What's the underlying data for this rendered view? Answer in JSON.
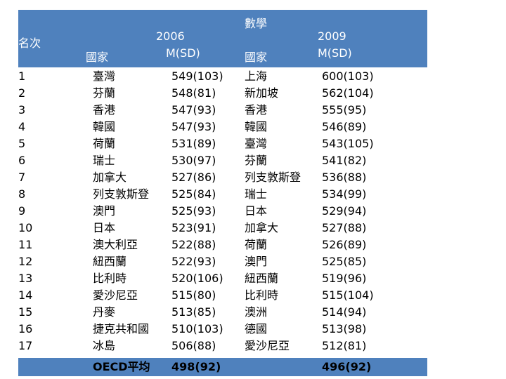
{
  "header": {
    "subject": "數學",
    "rank_label": "名次",
    "year_2006": "2006",
    "msd_2006": "M(SD)",
    "country_2006": "國家",
    "country_2009": "國家",
    "year_2009": "2009",
    "msd_2009": "M(SD)"
  },
  "rows": [
    {
      "rank": "1",
      "c2006": "臺灣",
      "v2006": "549(103)",
      "c2009": "上海",
      "v2009": "600(103)"
    },
    {
      "rank": "2",
      "c2006": "芬蘭",
      "v2006": "548(81)",
      "c2009": "新加坡",
      "v2009": "562(104)"
    },
    {
      "rank": "3",
      "c2006": "香港",
      "v2006": "547(93)",
      "c2009": "香港",
      "v2009": "555(95)"
    },
    {
      "rank": "4",
      "c2006": "韓國",
      "v2006": "547(93)",
      "c2009": "韓國",
      "v2009": "546(89)"
    },
    {
      "rank": "5",
      "c2006": "荷蘭",
      "v2006": "531(89)",
      "c2009": "臺灣",
      "v2009": "543(105)"
    },
    {
      "rank": "6",
      "c2006": "瑞士",
      "v2006": "530(97)",
      "c2009": "芬蘭",
      "v2009": "541(82)"
    },
    {
      "rank": "7",
      "c2006": "加拿大",
      "v2006": "527(86)",
      "c2009": "列支敦斯登",
      "v2009": "536(88)"
    },
    {
      "rank": "8",
      "c2006": "列支敦斯登",
      "v2006": "525(84)",
      "c2009": "瑞士",
      "v2009": "534(99)"
    },
    {
      "rank": "9",
      "c2006": "澳門",
      "v2006": "525(93)",
      "c2009": "日本",
      "v2009": "529(94)"
    },
    {
      "rank": "10",
      "c2006": "日本",
      "v2006": "523(91)",
      "c2009": "加拿大",
      "v2009": "527(88)"
    },
    {
      "rank": "11",
      "c2006": "澳大利亞",
      "v2006": "522(88)",
      "c2009": "荷蘭",
      "v2009": "526(89)"
    },
    {
      "rank": "12",
      "c2006": "紐西蘭",
      "v2006": "522(93)",
      "c2009": "澳門",
      "v2009": "525(85)"
    },
    {
      "rank": "13",
      "c2006": "比利時",
      "v2006": "520(106)",
      "c2009": "紐西蘭",
      "v2009": "519(96)"
    },
    {
      "rank": "14",
      "c2006": "愛沙尼亞",
      "v2006": "515(80)",
      "c2009": "比利時",
      "v2009": "515(104)"
    },
    {
      "rank": "15",
      "c2006": "丹麥",
      "v2006": "513(85)",
      "c2009": "澳洲",
      "v2009": "514(94)"
    },
    {
      "rank": "16",
      "c2006": "捷克共和國",
      "v2006": "510(103)",
      "c2009": "德國",
      "v2009": "513(98)"
    },
    {
      "rank": "17",
      "c2006": "冰島",
      "v2006": "506(88)",
      "c2009": "愛沙尼亞",
      "v2009": "512(81)"
    }
  ],
  "footer": {
    "label": "OECD平均",
    "v2006": "498(92)",
    "v2009": "496(92)"
  },
  "colors": {
    "header_bg": "#4f81bd",
    "header_text": "#ffffff"
  }
}
